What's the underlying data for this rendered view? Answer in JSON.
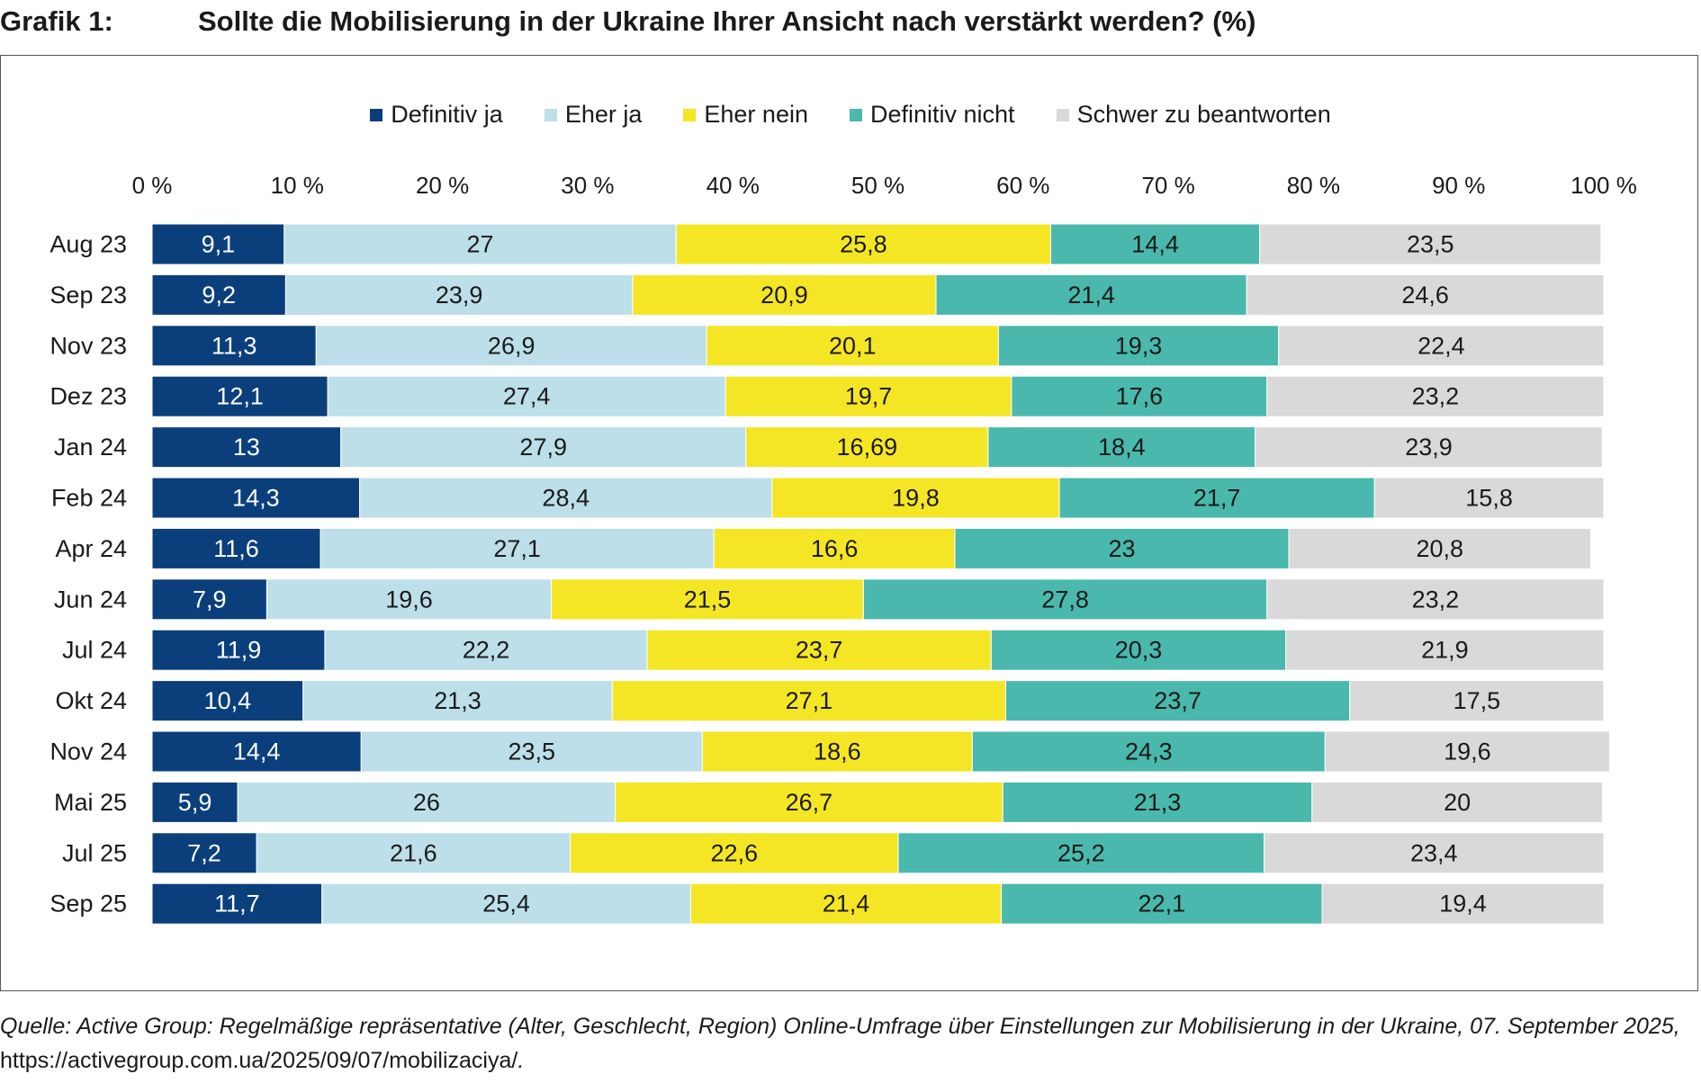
{
  "header": {
    "grafik_label": "Grafik 1:",
    "title": "Sollte die Mobilisierung in der Ukraine Ihrer Ansicht nach verstärkt werden? (%)"
  },
  "source": {
    "text": "Quelle: Active Group: Regelmäßige repräsentative (Alter, Geschlecht, Region) Online-Umfrage über Einstellungen zur Mobilisierung in der Ukraine, 07. Septem­ber 2025, ",
    "url": "https://activegroup.com.ua/2025/09/07/mobilizaciya/",
    "tail": "."
  },
  "chart_data": {
    "type": "bar",
    "orientation": "horizontal-stacked",
    "title": "Sollte die Mobilisierung in der Ukraine Ihrer Ansicht nach verstärkt werden? (%)",
    "xlim": [
      0,
      100
    ],
    "x_ticks": [
      "0 %",
      "10 %",
      "20 %",
      "30 %",
      "40 %",
      "50 %",
      "60 %",
      "70 %",
      "80 %",
      "90 %",
      "100 %"
    ],
    "legend_position": "top-center",
    "categories": [
      "Aug 23",
      "Sep 23",
      "Nov 23",
      "Dez 23",
      "Jan 24",
      "Feb 24",
      "Apr 24",
      "Jun 24",
      "Jul 24",
      "Okt 24",
      "Nov 24",
      "Mai 25",
      "Jul 25",
      "Sep 25"
    ],
    "series": [
      {
        "name": "Definitiv ja",
        "color": "#0b3f7c",
        "label_color": "#ffffff",
        "values": [
          9.1,
          9.2,
          11.3,
          12.1,
          13,
          14.3,
          11.6,
          7.9,
          11.9,
          10.4,
          14.4,
          5.9,
          7.2,
          11.7
        ],
        "labels": [
          "9,1",
          "9,2",
          "11,3",
          "12,1",
          "13",
          "14,3",
          "11,6",
          "7,9",
          "11,9",
          "10,4",
          "14,4",
          "5,9",
          "7,2",
          "11,7"
        ]
      },
      {
        "name": "Eher ja",
        "color": "#bcdfe9",
        "label_color": "#1a1a1a",
        "values": [
          27,
          23.9,
          26.9,
          27.4,
          27.9,
          28.4,
          27.1,
          19.6,
          22.2,
          21.3,
          23.5,
          26,
          21.6,
          25.4
        ],
        "labels": [
          "27",
          "23,9",
          "26,9",
          "27,4",
          "27,9",
          "28,4",
          "27,1",
          "19,6",
          "22,2",
          "21,3",
          "23,5",
          "26",
          "21,6",
          "25,4"
        ]
      },
      {
        "name": "Eher nein",
        "color": "#f5e625",
        "label_color": "#1a1a1a",
        "values": [
          25.8,
          20.9,
          20.1,
          19.7,
          16.69,
          19.8,
          16.6,
          21.5,
          23.7,
          27.1,
          18.6,
          26.7,
          22.6,
          21.4
        ],
        "labels": [
          "25,8",
          "20,9",
          "20,1",
          "19,7",
          "16,69",
          "19,8",
          "16,6",
          "21,5",
          "23,7",
          "27,1",
          "18,6",
          "26,7",
          "22,6",
          "21,4"
        ]
      },
      {
        "name": "Definitiv nicht",
        "color": "#4ab8ac",
        "label_color": "#1a1a1a",
        "values": [
          14.4,
          21.4,
          19.3,
          17.6,
          18.4,
          21.7,
          23,
          27.8,
          20.3,
          23.7,
          24.3,
          21.3,
          25.2,
          22.1
        ],
        "labels": [
          "14,4",
          "21,4",
          "19,3",
          "17,6",
          "18,4",
          "21,7",
          "23",
          "27,8",
          "20,3",
          "23,7",
          "24,3",
          "21,3",
          "25,2",
          "22,1"
        ]
      },
      {
        "name": "Schwer zu beantworten",
        "color": "#d9d9d9",
        "label_color": "#1a1a1a",
        "values": [
          23.5,
          24.6,
          22.4,
          23.2,
          23.9,
          15.8,
          20.8,
          23.2,
          21.9,
          17.5,
          19.6,
          20,
          23.4,
          19.4
        ],
        "labels": [
          "23,5",
          "24,6",
          "22,4",
          "23,2",
          "23,9",
          "15,8",
          "20,8",
          "23,2",
          "21,9",
          "17,5",
          "19,6",
          "20",
          "23,4",
          "19,4"
        ]
      }
    ]
  }
}
